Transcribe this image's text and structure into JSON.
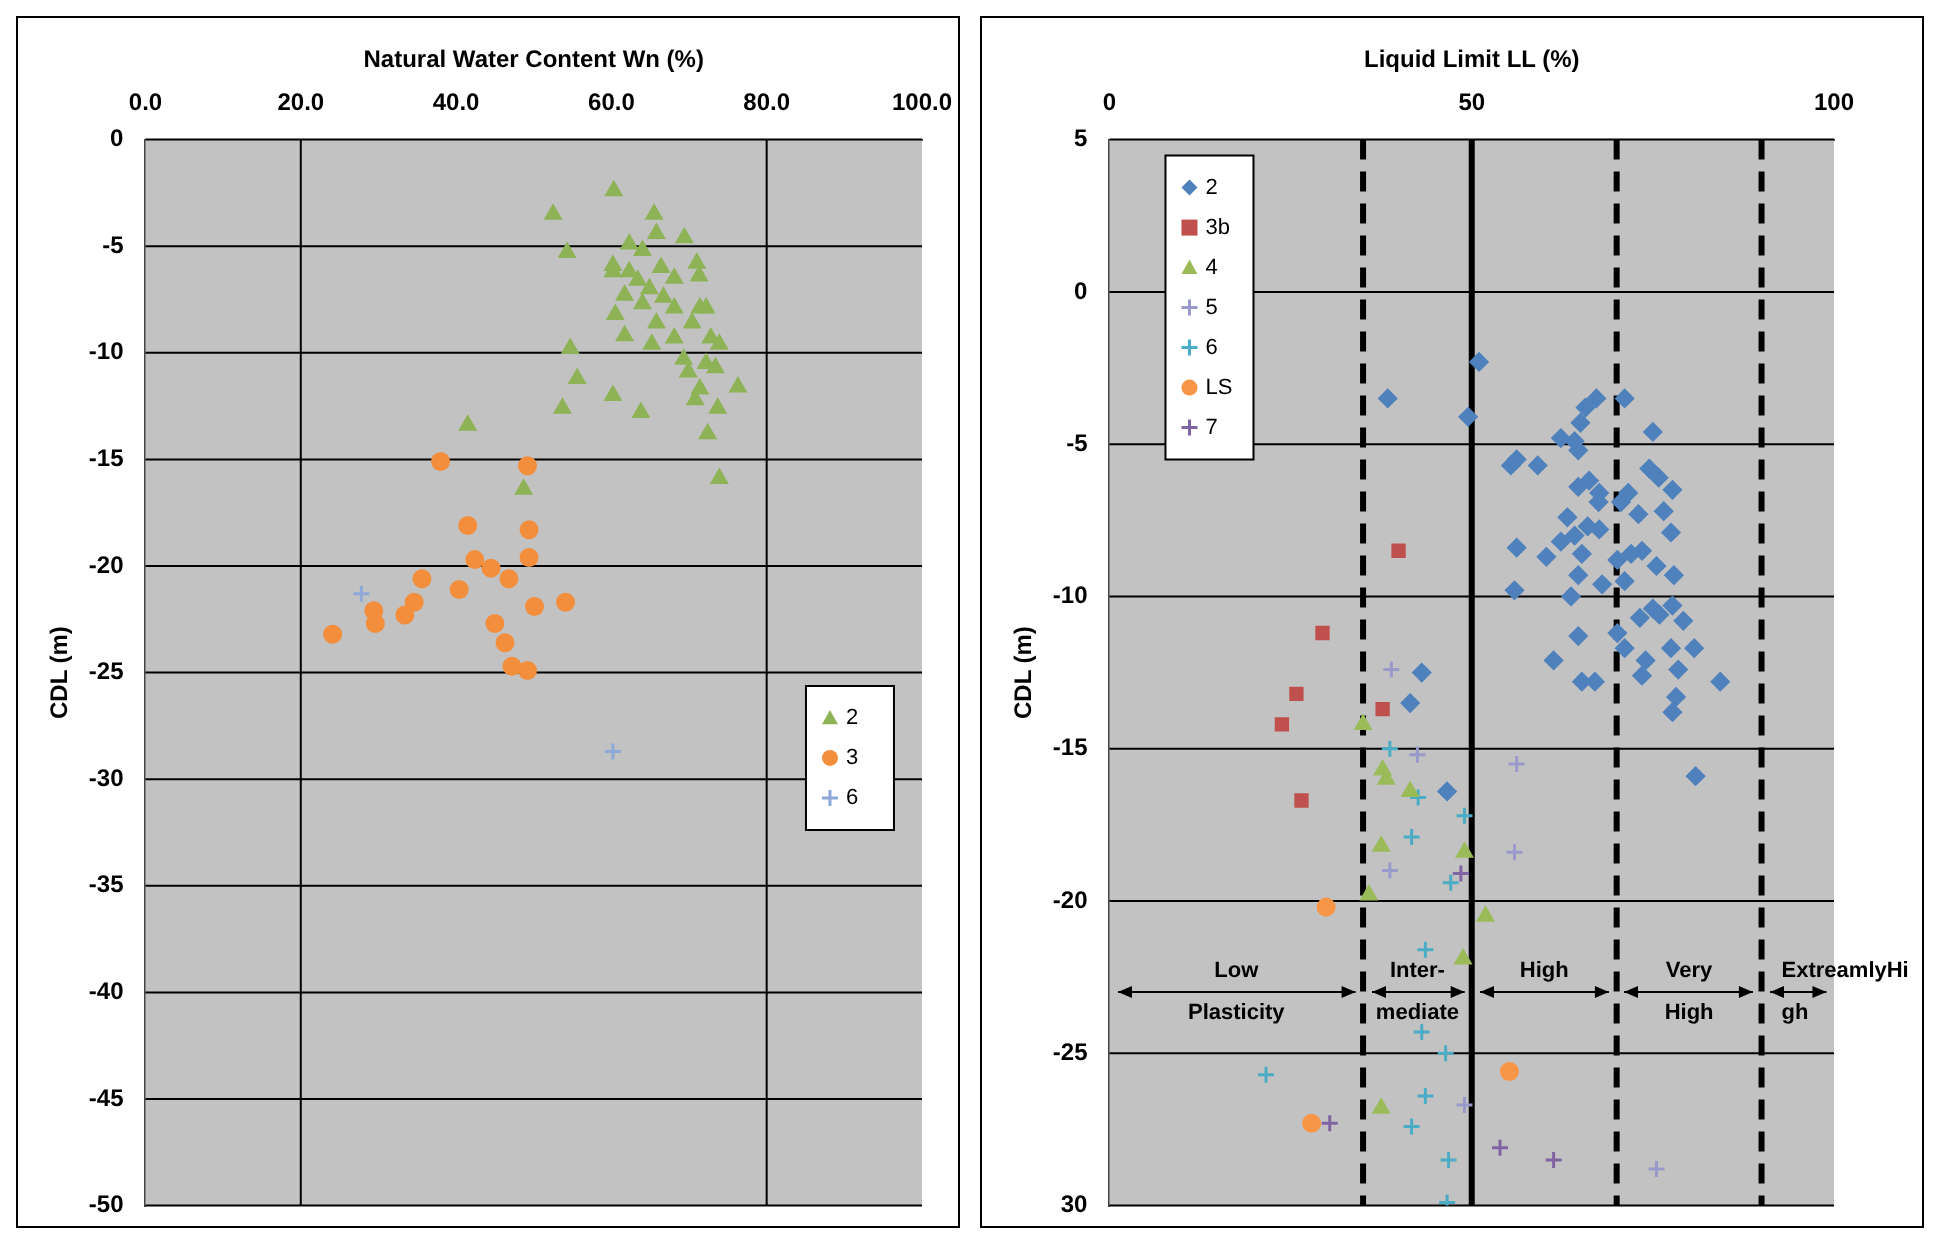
{
  "chart_data": [
    {
      "type": "scatter",
      "xlabel": "Natural Water Content Wn (%)",
      "ylabel": "CDL (m)",
      "xlim": [
        0,
        100
      ],
      "xticks": [
        {
          "value": 0,
          "label": "0.0"
        },
        {
          "value": 20,
          "label": "20.0"
        },
        {
          "value": 40,
          "label": "40.0"
        },
        {
          "value": 60,
          "label": "60.0"
        },
        {
          "value": 80,
          "label": "80.0"
        },
        {
          "value": 100,
          "label": "100.0"
        }
      ],
      "ylim": [
        -50,
        0
      ],
      "yticks": [
        0,
        -5,
        -10,
        -15,
        -20,
        -25,
        -30,
        -35,
        -40,
        -45,
        -50
      ],
      "grid": "y",
      "legend": "right",
      "ref_lines": [
        {
          "axis": "x",
          "value": 20,
          "line_style": "solid"
        },
        {
          "axis": "x",
          "value": 80,
          "line_style": "solid"
        }
      ],
      "series": [
        {
          "name": "2",
          "color": "#8db356",
          "marker": "triangle",
          "x": [
            60.3,
            52.5,
            65.5,
            54.3,
            62.3,
            65.8,
            69.4,
            71.0,
            60.2,
            60.2,
            64.0,
            62.3,
            66.4,
            63.4,
            68.1,
            71.3,
            61.7,
            64.9,
            66.7,
            64.0,
            68.1,
            71.4,
            72.2,
            60.5,
            65.8,
            70.4,
            61.7,
            68.1,
            65.2,
            72.8,
            73.9,
            54.7,
            69.3,
            72.2,
            73.4,
            69.9,
            55.6,
            71.4,
            76.3,
            70.8,
            60.2,
            53.7,
            73.7,
            63.8,
            72.4,
            73.9,
            41.5,
            48.7
          ],
          "values": [
            -2.4,
            -3.5,
            -3.5,
            -5.3,
            -4.9,
            -4.4,
            -4.6,
            -5.8,
            -5.9,
            -6.2,
            -5.2,
            -6.2,
            -6.0,
            -6.6,
            -6.5,
            -6.4,
            -7.3,
            -7.0,
            -7.4,
            -7.7,
            -7.9,
            -7.9,
            -7.9,
            -8.2,
            -8.6,
            -8.6,
            -9.2,
            -9.3,
            -9.6,
            -9.3,
            -9.6,
            -9.8,
            -10.3,
            -10.5,
            -10.7,
            -10.9,
            -11.2,
            -11.7,
            -11.6,
            -12.2,
            -12.0,
            -12.6,
            -12.6,
            -12.8,
            -13.8,
            -15.9,
            -13.4,
            -16.4
          ]
        },
        {
          "name": "3",
          "color": "#f28e3c",
          "marker": "circle",
          "x": [
            38.0,
            49.2,
            41.5,
            49.4,
            42.4,
            49.4,
            44.5,
            46.8,
            35.6,
            40.4,
            34.6,
            54.1,
            50.1,
            29.4,
            33.4,
            29.6,
            45.0,
            24.1,
            46.3,
            47.2,
            49.2
          ],
          "values": [
            -15.1,
            -15.3,
            -18.1,
            -18.3,
            -19.7,
            -19.6,
            -20.1,
            -20.6,
            -20.6,
            -21.1,
            -21.7,
            -21.7,
            -21.9,
            -22.1,
            -22.3,
            -22.7,
            -22.7,
            -23.2,
            -23.6,
            -24.7,
            -24.9
          ]
        },
        {
          "name": "6",
          "color": "#8ea9d8",
          "marker": "cross",
          "x": [
            27.8,
            60.2
          ],
          "values": [
            -21.3,
            -28.7
          ]
        }
      ]
    },
    {
      "type": "scatter",
      "xlabel": "Liquid Limit LL (%)",
      "ylabel": "CDL (m)",
      "xlim": [
        0,
        100
      ],
      "xticks": [
        0,
        50,
        100
      ],
      "ylim": [
        -30,
        5
      ],
      "yticks": [
        5,
        0,
        -5,
        -10,
        -15,
        -20,
        -25,
        {
          "value": -30,
          "label": "30"
        }
      ],
      "grid": "y",
      "legend": "top left",
      "ref_lines": [
        {
          "axis": "x",
          "value": 35,
          "line_style": "dashed"
        },
        {
          "axis": "x",
          "value": 50,
          "line_style": "solid"
        },
        {
          "axis": "x",
          "value": 70,
          "line_style": "dashed"
        },
        {
          "axis": "x",
          "value": 90,
          "line_style": "dashed"
        }
      ],
      "annotations": [
        "Low Plasticity",
        "Inter-mediate",
        "High",
        "Very High",
        "ExtreamlyHigh"
      ],
      "series": [
        {
          "name": "2",
          "color": "#4f81bd",
          "marker": "diamond",
          "x": [
            51,
            38.4,
            49.5,
            67.2,
            71.1,
            65.7,
            65,
            75,
            62.3,
            64.2,
            64.7,
            56.2,
            59.1,
            55.4,
            74.5,
            75.8,
            66.2,
            64.7,
            67.6,
            71.6,
            77.7,
            70.6,
            67.5,
            63.2,
            76.5,
            66,
            67.6,
            64.2,
            73,
            77.5,
            62.3,
            56.2,
            73.5,
            60.3,
            65.2,
            70.1,
            72,
            75.5,
            64.7,
            77.9,
            68,
            71.1,
            55.9,
            63.7,
            70.1,
            75,
            77.7,
            73.2,
            75.9,
            79.2,
            64.7,
            71.1,
            74,
            77.5,
            80.7,
            61.3,
            78.5,
            65.2,
            67,
            84.3,
            73.5,
            43.1,
            78.2,
            77.7,
            80.9,
            41.5,
            46.6
          ],
          "values": [
            -2.3,
            -3.5,
            -4.1,
            -3.5,
            -3.5,
            -3.8,
            -4.3,
            -4.6,
            -4.8,
            -4.9,
            -5.2,
            -5.5,
            -5.7,
            -5.7,
            -5.8,
            -6.1,
            -6.2,
            -6.4,
            -6.6,
            -6.6,
            -6.5,
            -6.9,
            -6.9,
            -7.4,
            -7.2,
            -7.7,
            -7.8,
            -8.0,
            -7.3,
            -7.9,
            -8.2,
            -8.4,
            -8.5,
            -8.7,
            -8.6,
            -8.8,
            -8.6,
            -9.0,
            -9.3,
            -9.3,
            -9.6,
            -9.5,
            -9.8,
            -10.0,
            -11.2,
            -10.4,
            -10.3,
            -10.7,
            -10.6,
            -10.8,
            -11.3,
            -11.7,
            -12.1,
            -11.7,
            -11.7,
            -12.1,
            -12.4,
            -12.8,
            -12.8,
            -12.8,
            -12.6,
            -12.5,
            -13.3,
            -13.8,
            -15.9,
            -13.5,
            -16.4
          ]
        },
        {
          "name": "3b",
          "color": "#c0504d",
          "marker": "square",
          "x": [
            39.9,
            29.4,
            25.8,
            23.8,
            26.5,
            37.7
          ],
          "values": [
            -8.5,
            -11.2,
            -13.2,
            -14.2,
            -16.7,
            -13.7
          ]
        },
        {
          "name": "4",
          "color": "#9bbb59",
          "marker": "triangle",
          "x": [
            35,
            37.7,
            38.2,
            41.5,
            37.5,
            49,
            35.8,
            51.9,
            48.8,
            37.5
          ],
          "values": [
            -14.2,
            -15.7,
            -16,
            -16.4,
            -18.2,
            -18.4,
            -19.8,
            -20.5,
            -21.9,
            -26.8
          ]
        },
        {
          "name": "5",
          "color": "#9999cc",
          "marker": "cross",
          "x": [
            38.9,
            42.5,
            56.2,
            55.9,
            38.7,
            75.5,
            49
          ],
          "values": [
            -12.4,
            -15.2,
            -15.5,
            -18.4,
            -19,
            -28.8,
            -26.7
          ]
        },
        {
          "name": "6",
          "color": "#4bacc6",
          "marker": "cross",
          "x": [
            38.7,
            42.6,
            49,
            41.7,
            47.1,
            43.6,
            43.1,
            46.4,
            21.6,
            43.6,
            46.8,
            46.6,
            41.7
          ],
          "values": [
            -15,
            -16.6,
            -17.2,
            -17.9,
            -19.4,
            -21.6,
            -24.3,
            -25,
            -25.7,
            -26.4,
            -28.5,
            -29.9,
            -27.4
          ]
        },
        {
          "name": "LS",
          "color": "#f79646",
          "marker": "circle",
          "x": [
            29.9,
            55.2,
            27.9
          ],
          "values": [
            -20.2,
            -25.6,
            -27.3
          ]
        },
        {
          "name": "7",
          "color": "#8064a2",
          "marker": "cross",
          "x": [
            30.4,
            53.9,
            61.3,
            48.5
          ],
          "values": [
            -27.3,
            -28.1,
            -28.5,
            -19.1
          ]
        }
      ]
    }
  ]
}
